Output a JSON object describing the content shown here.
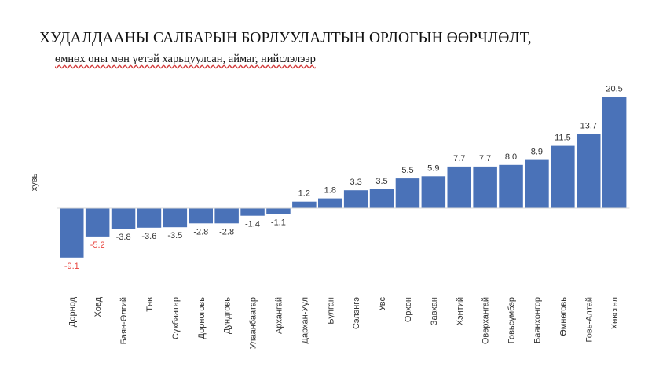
{
  "chart_data": {
    "type": "bar",
    "title": "ХУДАЛДААНЫ САЛБАРЫН БОРЛУУЛАЛТЫН ОРЛОГЫН ӨӨРЧЛӨЛТ,",
    "subtitle": "өмнөх оны мөн үетэй харьцуулсан, аймаг, нийслэлээр",
    "xlabel": "",
    "ylabel": "хувь",
    "grid": false,
    "legend": "none",
    "categories": [
      "Дорнод",
      "Ховд",
      "Баян-Өлгий",
      "Төв",
      "Сүхбаатар",
      "Дорноговь",
      "Дундговь",
      "Улаанбаатар",
      "Архангай",
      "Дархан-Уул",
      "Булган",
      "Сэлэнгэ",
      "Увс",
      "Орхон",
      "Завхан",
      "Хэнтий",
      "Өвөрхангай",
      "Говьсүмбэр",
      "Баянхонгор",
      "Өмнөговь",
      "Говь-Алтай",
      "Хөвсгөл"
    ],
    "values": [
      -9.1,
      -5.2,
      -3.8,
      -3.6,
      -3.5,
      -2.8,
      -2.8,
      -1.4,
      -1.1,
      1.2,
      1.8,
      3.3,
      3.5,
      5.5,
      5.9,
      7.7,
      7.7,
      8.0,
      8.9,
      11.5,
      13.7,
      20.5
    ],
    "value_labels": [
      "-9.1",
      "-5.2",
      "-3.8",
      "-3.6",
      "-3.5",
      "-2.8",
      "-2.8",
      "-1.4",
      "-1.1",
      "1.2",
      "1.8",
      "3.3",
      "3.5",
      "5.5",
      "5.9",
      "7.7",
      "7.7",
      "8.0",
      "8.9",
      "11.5",
      "13.7",
      "20.5"
    ],
    "highlighted_labels": [
      "-9.1",
      "-5.2"
    ],
    "ylim": [
      -9.1,
      20.5
    ],
    "colors": {
      "bar": "#4a72b8",
      "axis": "#d9d9d9",
      "label": "#333333",
      "highlight_label": "#e8413b"
    }
  }
}
